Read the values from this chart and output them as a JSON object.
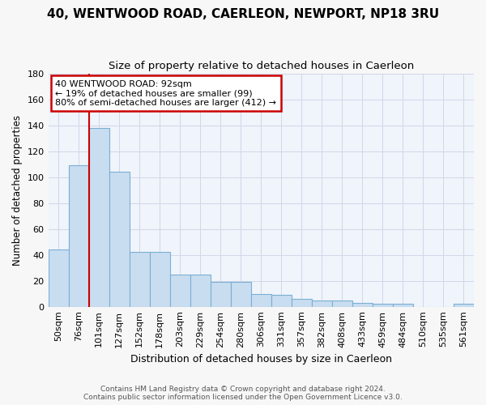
{
  "title_line1": "40, WENTWOOD ROAD, CAERLEON, NEWPORT, NP18 3RU",
  "title_line2": "Size of property relative to detached houses in Caerleon",
  "xlabel": "Distribution of detached houses by size in Caerleon",
  "ylabel": "Number of detached properties",
  "categories": [
    "50sqm",
    "76sqm",
    "101sqm",
    "127sqm",
    "152sqm",
    "178sqm",
    "203sqm",
    "229sqm",
    "254sqm",
    "280sqm",
    "306sqm",
    "331sqm",
    "357sqm",
    "382sqm",
    "408sqm",
    "433sqm",
    "459sqm",
    "484sqm",
    "510sqm",
    "535sqm",
    "561sqm"
  ],
  "bar_heights": [
    44,
    109,
    138,
    104,
    42,
    42,
    25,
    25,
    19,
    19,
    10,
    9,
    6,
    5,
    5,
    3,
    2,
    2,
    0,
    0,
    2
  ],
  "bar_color": "#c9ddf0",
  "bar_edge_color": "#7aafd4",
  "vline_x": 2,
  "vline_color": "#cc0000",
  "annotation_text": "40 WENTWOOD ROAD: 92sqm\n← 19% of detached houses are smaller (99)\n80% of semi-detached houses are larger (412) →",
  "annotation_box_color": "white",
  "annotation_box_edge_color": "#cc0000",
  "ylim": [
    0,
    180
  ],
  "yticks": [
    0,
    20,
    40,
    60,
    80,
    100,
    120,
    140,
    160,
    180
  ],
  "footer_line1": "Contains HM Land Registry data © Crown copyright and database right 2024.",
  "footer_line2": "Contains public sector information licensed under the Open Government Licence v3.0.",
  "bg_color": "#f7f7f7",
  "plot_bg_color": "#f0f4fb",
  "grid_color": "#d0d8e8",
  "title_fontsize": 11,
  "subtitle_fontsize": 9.5,
  "xlabel_fontsize": 9,
  "ylabel_fontsize": 8.5,
  "tick_fontsize": 8,
  "footer_fontsize": 6.5
}
